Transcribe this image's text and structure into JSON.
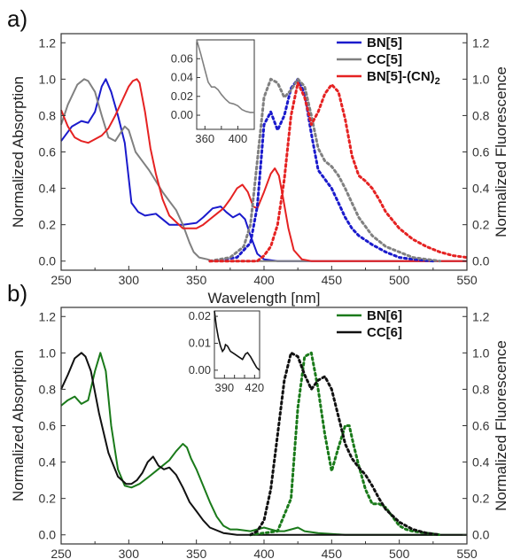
{
  "colors": {
    "bn5": "#1a1acc",
    "cc5": "#808080",
    "bn5cn2": "#e52222",
    "bn6": "#1a7a1a",
    "cc6": "#111111",
    "axis": "#333333"
  },
  "chart_data": [
    {
      "type": "line",
      "panel_label": "a)",
      "xlabel": "Wavelength [nm]",
      "ylabel_left": "Normalized Absorption",
      "ylabel_right": "Normalized Fluorescence",
      "xlim": [
        250,
        550
      ],
      "ylim": [
        -0.05,
        1.25
      ],
      "x_ticks": [
        250,
        300,
        350,
        400,
        450,
        500,
        550
      ],
      "y_ticks": [
        0.0,
        0.2,
        0.4,
        0.6,
        0.8,
        1.0,
        1.2
      ],
      "y_tick_labels": [
        "0.0",
        "0.2",
        "0.4",
        "0.6",
        "0.8",
        "1.0",
        "1.2"
      ],
      "legend": {
        "position": "top-right",
        "entries": [
          {
            "label": "BN[5]",
            "color_key": "bn5"
          },
          {
            "label": "CC[5]",
            "color_key": "cc5"
          },
          {
            "label": "BN[5]-(CN)",
            "sub": "2",
            "color_key": "bn5cn2"
          }
        ]
      },
      "series": [
        {
          "key": "bn5",
          "kind": "absorption",
          "style": "solid",
          "x": [
            250,
            258,
            265,
            270,
            275,
            280,
            283,
            287,
            292,
            297,
            302,
            307,
            312,
            320,
            330,
            340,
            350,
            355,
            362,
            368,
            372,
            377,
            382,
            386,
            390,
            395,
            400,
            410,
            420,
            450,
            550
          ],
          "y": [
            0.66,
            0.74,
            0.77,
            0.76,
            0.82,
            0.96,
            1.0,
            0.93,
            0.8,
            0.65,
            0.32,
            0.27,
            0.25,
            0.26,
            0.2,
            0.2,
            0.21,
            0.24,
            0.29,
            0.3,
            0.27,
            0.24,
            0.26,
            0.23,
            0.14,
            0.04,
            0.01,
            0,
            0,
            0,
            0
          ]
        },
        {
          "key": "cc5",
          "kind": "absorption",
          "style": "solid",
          "x": [
            250,
            255,
            262,
            267,
            270,
            275,
            280,
            285,
            290,
            297,
            300,
            305,
            310,
            315,
            320,
            325,
            330,
            335,
            340,
            345,
            348,
            352,
            358,
            362,
            370,
            380,
            550
          ],
          "y": [
            0.75,
            0.86,
            0.97,
            1.0,
            0.99,
            0.93,
            0.8,
            0.68,
            0.66,
            0.74,
            0.72,
            0.6,
            0.55,
            0.5,
            0.44,
            0.38,
            0.33,
            0.28,
            0.2,
            0.1,
            0.05,
            0.02,
            0.01,
            0,
            0,
            0,
            0
          ]
        },
        {
          "key": "bn5cn2",
          "kind": "absorption",
          "style": "solid",
          "x": [
            250,
            255,
            260,
            265,
            270,
            275,
            280,
            285,
            290,
            295,
            300,
            303,
            306,
            308,
            312,
            316,
            320,
            325,
            330,
            340,
            350,
            355,
            360,
            365,
            370,
            375,
            380,
            384,
            388,
            392,
            395,
            400,
            405,
            408,
            411,
            414,
            418,
            422,
            428,
            435,
            550
          ],
          "y": [
            0.83,
            0.74,
            0.68,
            0.66,
            0.65,
            0.67,
            0.69,
            0.73,
            0.8,
            0.88,
            0.96,
            0.99,
            1.0,
            0.98,
            0.82,
            0.62,
            0.48,
            0.34,
            0.25,
            0.18,
            0.18,
            0.2,
            0.23,
            0.26,
            0.29,
            0.34,
            0.4,
            0.42,
            0.38,
            0.3,
            0.29,
            0.38,
            0.48,
            0.51,
            0.47,
            0.35,
            0.18,
            0.06,
            0.01,
            0,
            0
          ]
        },
        {
          "key": "bn5",
          "kind": "fluorescence",
          "style": "dotted",
          "x": [
            360,
            380,
            390,
            395,
            400,
            405,
            410,
            415,
            420,
            425,
            430,
            435,
            440,
            445,
            450,
            455,
            460,
            465,
            470,
            480,
            490,
            500,
            510,
            525
          ],
          "y": [
            0,
            0.02,
            0.1,
            0.3,
            0.75,
            0.82,
            0.72,
            0.8,
            0.95,
            1.0,
            0.92,
            0.7,
            0.5,
            0.45,
            0.4,
            0.32,
            0.24,
            0.18,
            0.14,
            0.09,
            0.05,
            0.02,
            0.01,
            0
          ]
        },
        {
          "key": "cc5",
          "kind": "fluorescence",
          "style": "dotted",
          "x": [
            360,
            375,
            385,
            390,
            395,
            400,
            405,
            410,
            415,
            420,
            425,
            430,
            435,
            440,
            445,
            450,
            455,
            460,
            465,
            470,
            480,
            490,
            500,
            510,
            520,
            530
          ],
          "y": [
            0,
            0.02,
            0.08,
            0.2,
            0.55,
            0.9,
            1.0,
            0.98,
            0.9,
            0.94,
            1.0,
            0.96,
            0.8,
            0.62,
            0.55,
            0.52,
            0.47,
            0.4,
            0.32,
            0.24,
            0.14,
            0.08,
            0.05,
            0.02,
            0.01,
            0
          ]
        },
        {
          "key": "bn5cn2",
          "kind": "fluorescence",
          "style": "dotted",
          "x": [
            360,
            395,
            400,
            405,
            410,
            415,
            420,
            425,
            430,
            435,
            440,
            445,
            450,
            455,
            460,
            465,
            470,
            475,
            480,
            485,
            490,
            500,
            510,
            520,
            530,
            540,
            550
          ],
          "y": [
            0,
            0,
            0.03,
            0.08,
            0.2,
            0.45,
            0.8,
            0.98,
            0.9,
            0.75,
            0.82,
            0.92,
            0.97,
            0.93,
            0.78,
            0.58,
            0.47,
            0.44,
            0.4,
            0.34,
            0.27,
            0.18,
            0.12,
            0.08,
            0.05,
            0.03,
            0.02
          ]
        }
      ],
      "inset": {
        "xlim": [
          350,
          420
        ],
        "ylim": [
          -0.015,
          0.08
        ],
        "x_ticks": [
          360,
          380,
          400
        ],
        "x_tick_labels": [
          "360",
          "",
          "400"
        ],
        "y_ticks": [
          0.0,
          0.02,
          0.04,
          0.06
        ],
        "y_tick_labels": [
          "0.00",
          "0.02",
          "0.04",
          "0.06"
        ],
        "series": [
          {
            "key": "cc5",
            "x": [
              350,
              355,
              360,
              364,
              368,
              372,
              376,
              380,
              385,
              390,
              395,
              400,
              405,
              410,
              415,
              420
            ],
            "y": [
              0.08,
              0.065,
              0.048,
              0.035,
              0.03,
              0.03,
              0.027,
              0.022,
              0.017,
              0.013,
              0.012,
              0.01,
              0.006,
              0.004,
              0.003,
              0.003
            ]
          }
        ]
      }
    },
    {
      "type": "line",
      "panel_label": "b)",
      "xlabel": "Wavelength [nm]",
      "ylabel_left": "Normalized Absorption",
      "ylabel_right": "Normalized Fluorescence",
      "xlim": [
        250,
        550
      ],
      "ylim": [
        -0.05,
        1.25
      ],
      "x_ticks": [
        250,
        300,
        350,
        400,
        450,
        500,
        550
      ],
      "y_ticks": [
        0.0,
        0.2,
        0.4,
        0.6,
        0.8,
        1.0,
        1.2
      ],
      "y_tick_labels": [
        "0.0",
        "0.2",
        "0.4",
        "0.6",
        "0.8",
        "1.0",
        "1.2"
      ],
      "legend": {
        "position": "top-right",
        "entries": [
          {
            "label": "BN[6]",
            "color_key": "bn6"
          },
          {
            "label": "CC[6]",
            "color_key": "cc6"
          }
        ]
      },
      "series": [
        {
          "key": "bn6",
          "kind": "absorption",
          "style": "solid",
          "x": [
            250,
            255,
            260,
            265,
            270,
            275,
            279,
            283,
            287,
            292,
            297,
            302,
            308,
            315,
            320,
            325,
            330,
            335,
            340,
            343,
            346,
            350,
            355,
            360,
            365,
            370,
            375,
            380,
            390,
            400,
            405,
            410,
            415,
            420,
            425,
            430,
            440,
            460,
            550
          ],
          "y": [
            0.71,
            0.74,
            0.76,
            0.72,
            0.74,
            0.9,
            1.0,
            0.9,
            0.6,
            0.36,
            0.27,
            0.26,
            0.28,
            0.32,
            0.35,
            0.38,
            0.41,
            0.46,
            0.5,
            0.48,
            0.42,
            0.36,
            0.27,
            0.18,
            0.1,
            0.05,
            0.03,
            0.03,
            0.02,
            0.04,
            0.03,
            0.02,
            0.02,
            0.03,
            0.04,
            0.02,
            0.01,
            0,
            0
          ]
        },
        {
          "key": "cc6",
          "kind": "absorption",
          "style": "solid",
          "x": [
            250,
            255,
            260,
            265,
            268,
            272,
            278,
            285,
            292,
            298,
            302,
            306,
            310,
            314,
            318,
            322,
            326,
            330,
            335,
            340,
            345,
            350,
            355,
            360,
            370,
            380,
            400,
            550
          ],
          "y": [
            0.8,
            0.88,
            0.97,
            1.0,
            0.98,
            0.9,
            0.67,
            0.45,
            0.32,
            0.28,
            0.28,
            0.3,
            0.34,
            0.4,
            0.43,
            0.38,
            0.36,
            0.37,
            0.33,
            0.26,
            0.18,
            0.13,
            0.08,
            0.04,
            0.01,
            0,
            0,
            0
          ]
        },
        {
          "key": "bn6",
          "kind": "fluorescence",
          "style": "dotted",
          "x": [
            390,
            410,
            420,
            425,
            430,
            435,
            440,
            445,
            450,
            455,
            460,
            463,
            466,
            470,
            475,
            480,
            485,
            490,
            495,
            500,
            505,
            510,
            520,
            530
          ],
          "y": [
            0,
            0.02,
            0.2,
            0.7,
            0.98,
            1.0,
            0.8,
            0.55,
            0.35,
            0.48,
            0.6,
            0.6,
            0.5,
            0.38,
            0.25,
            0.17,
            0.17,
            0.15,
            0.1,
            0.05,
            0.03,
            0.02,
            0.01,
            0
          ]
        },
        {
          "key": "cc6",
          "kind": "fluorescence",
          "style": "dotted",
          "x": [
            390,
            395,
            400,
            405,
            410,
            415,
            420,
            425,
            430,
            435,
            440,
            445,
            450,
            455,
            460,
            465,
            470,
            475,
            480,
            485,
            490,
            500,
            510,
            520,
            530
          ],
          "y": [
            0,
            0.02,
            0.08,
            0.25,
            0.55,
            0.85,
            1.0,
            0.98,
            0.88,
            0.8,
            0.85,
            0.87,
            0.8,
            0.65,
            0.5,
            0.42,
            0.37,
            0.33,
            0.27,
            0.2,
            0.14,
            0.07,
            0.03,
            0.01,
            0
          ]
        }
      ],
      "inset": {
        "xlim": [
          380,
          425
        ],
        "ylim": [
          -0.003,
          0.022
        ],
        "x_ticks": [
          390,
          400,
          410,
          420
        ],
        "x_tick_labels": [
          "390",
          "",
          "",
          "420"
        ],
        "y_ticks": [
          0.0,
          0.01,
          0.02
        ],
        "y_tick_labels": [
          "0.00",
          "0.01",
          "0.02"
        ],
        "series": [
          {
            "key": "cc6",
            "x": [
              380,
              382,
              384,
              386,
              388,
              390,
              391,
              393,
              396,
              400,
              404,
              408,
              411,
              413,
              416,
              419,
              422,
              425
            ],
            "y": [
              0.022,
              0.016,
              0.012,
              0.009,
              0.007,
              0.008,
              0.0095,
              0.009,
              0.007,
              0.006,
              0.005,
              0.004,
              0.006,
              0.0065,
              0.005,
              0.003,
              0.001,
              0.0
            ]
          }
        ]
      }
    }
  ]
}
